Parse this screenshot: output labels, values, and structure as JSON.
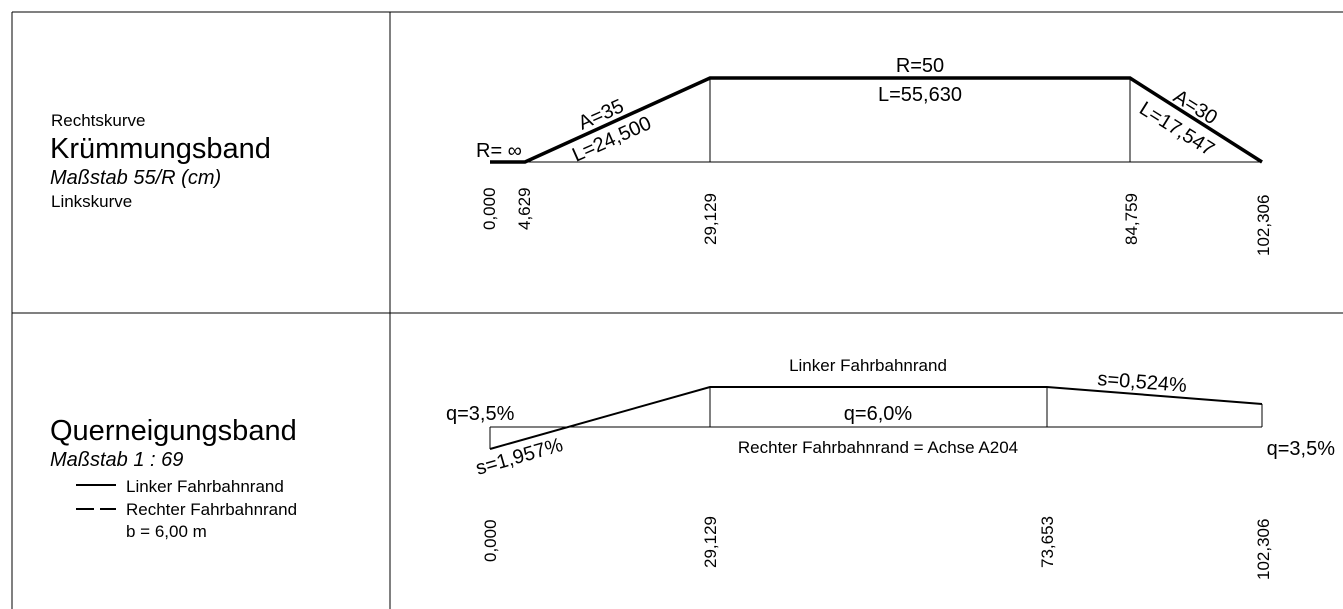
{
  "curvature_band": {
    "label_right": "Rechtskurve",
    "title": "Krümmungsband",
    "scale": "Maßstab 55/R (cm)",
    "label_left": "Linkskurve",
    "r_start": "R= ∞",
    "arc1_a": "A=35",
    "arc1_l": "L=24,500",
    "main_r": "R=50",
    "main_l": "L=55,630",
    "arc2_a": "A=30",
    "arc2_l": "L=17,547",
    "stations": [
      "0,000",
      "4,629",
      "29,129",
      "84,759",
      "102,306"
    ]
  },
  "crossfall_band": {
    "title": "Querneigungsband",
    "scale": "Maßstab 1 : 69",
    "legend_left": "Linker Fahrbahnrand",
    "legend_right": "Rechter Fahrbahnrand",
    "width": "b = 6,00 m",
    "left_edge_label": "Linker Fahrbahnrand",
    "right_edge_label": "Rechter Fahrbahnrand = Achse A204",
    "q_start": "q=3,5%",
    "q_mid": "q=6,0%",
    "q_end": "q=3,5%",
    "s_left": "s=1,957%",
    "s_right": "s=0,524%",
    "stations": [
      "0,000",
      "29,129",
      "73,653",
      "102,306"
    ]
  }
}
